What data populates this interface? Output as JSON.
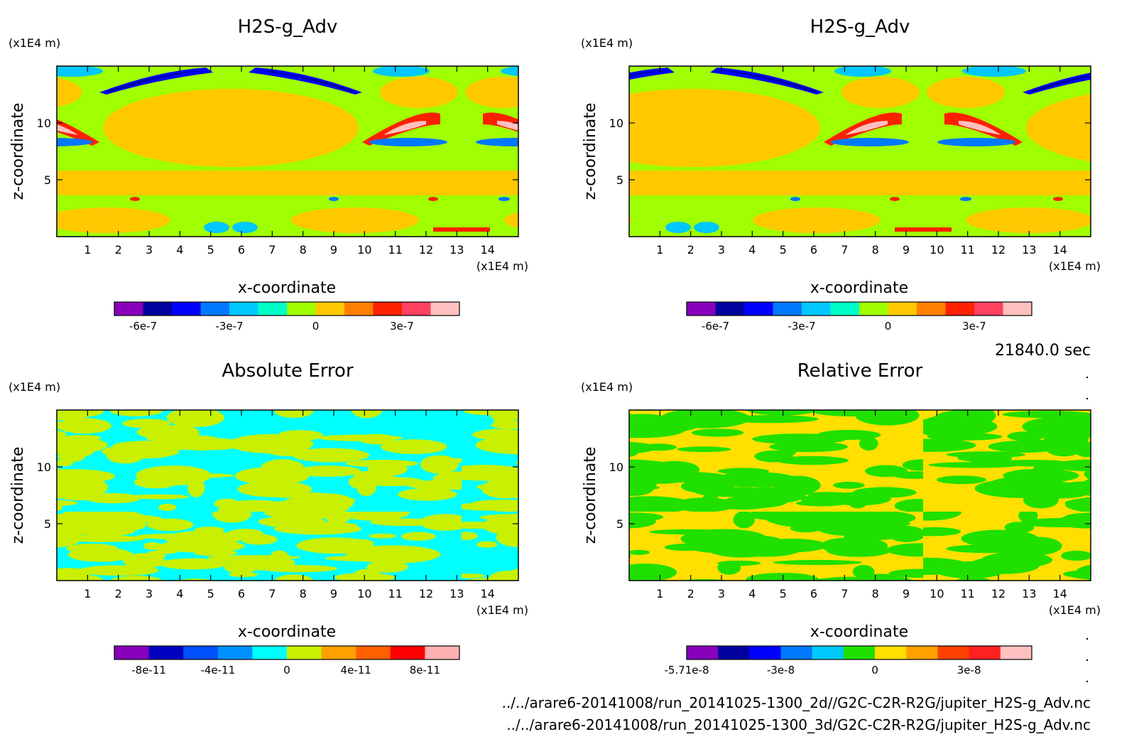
{
  "footer": {
    "time_label": "21840.0 sec",
    "file_2d": "../../arare6-20141008/run_20141025-1300_2d//G2C-C2R-R2G/jupiter_H2S-g_Adv.nc",
    "file_3d": "../../arare6-20141008/run_20141025-1300_3d/G2C-C2R-R2G/jupiter_H2S-g_Adv.nc"
  },
  "chart_data": [
    {
      "type": "heatmap",
      "title": "H2S-g_Adv",
      "xlabel": "x-coordinate",
      "ylabel": "z-coordinate",
      "x_unit": "(x1E4 m)",
      "y_unit": "(x1E4 m)",
      "xlim": [
        0,
        15
      ],
      "ylim": [
        0,
        15
      ],
      "x_ticks": [
        1,
        2,
        3,
        4,
        5,
        6,
        7,
        8,
        9,
        10,
        11,
        12,
        13,
        14
      ],
      "y_ticks": [
        5,
        10
      ],
      "colorbar": {
        "colors": [
          "#8800bb",
          "#0000a0",
          "#0000ff",
          "#0078ff",
          "#00c8ff",
          "#00ffc8",
          "#a0ff00",
          "#ffc800",
          "#ff8000",
          "#ff2000",
          "#ff4060",
          "#ffc0c0"
        ],
        "tick_labels": [
          "-6e-7",
          "-3e-7",
          "0",
          "3e-7"
        ],
        "tick_index": [
          1,
          4,
          7,
          10
        ]
      }
    },
    {
      "type": "heatmap",
      "title": "H2S-g_Adv",
      "xlabel": "x-coordinate",
      "ylabel": "z-coordinate",
      "x_unit": "(x1E4 m)",
      "y_unit": "(x1E4 m)",
      "xlim": [
        0,
        15
      ],
      "ylim": [
        0,
        15
      ],
      "x_ticks": [
        1,
        2,
        3,
        4,
        5,
        6,
        7,
        8,
        9,
        10,
        11,
        12,
        13,
        14
      ],
      "y_ticks": [
        5,
        10
      ],
      "colorbar": {
        "colors": [
          "#8800bb",
          "#0000a0",
          "#0000ff",
          "#0078ff",
          "#00c8ff",
          "#00ffc8",
          "#a0ff00",
          "#ffc800",
          "#ff8000",
          "#ff2000",
          "#ff4060",
          "#ffc0c0"
        ],
        "tick_labels": [
          "-6e-7",
          "-3e-7",
          "0",
          "3e-7"
        ],
        "tick_index": [
          1,
          4,
          7,
          10
        ]
      }
    },
    {
      "type": "heatmap",
      "title": "Absolute Error",
      "xlabel": "x-coordinate",
      "ylabel": "z-coordinate",
      "x_unit": "(x1E4 m)",
      "y_unit": "(x1E4 m)",
      "xlim": [
        0,
        15
      ],
      "ylim": [
        0,
        15
      ],
      "x_ticks": [
        1,
        2,
        3,
        4,
        5,
        6,
        7,
        8,
        9,
        10,
        11,
        12,
        13,
        14
      ],
      "y_ticks": [
        5,
        10
      ],
      "colorbar": {
        "colors": [
          "#8800bb",
          "#0000c0",
          "#0050ff",
          "#0090ff",
          "#00ffff",
          "#c8f000",
          "#ffa000",
          "#ff6000",
          "#ff0000",
          "#ffb0b0"
        ],
        "tick_labels": [
          "-8e-11",
          "-4e-11",
          "0",
          "4e-11",
          "8e-11"
        ],
        "tick_index": [
          1,
          3,
          5,
          7,
          9
        ]
      }
    },
    {
      "type": "heatmap",
      "title": "Relative Error",
      "xlabel": "x-coordinate",
      "ylabel": "z-coordinate",
      "x_unit": "(x1E4 m)",
      "y_unit": "(x1E4 m)",
      "xlim": [
        0,
        15
      ],
      "ylim": [
        0,
        15
      ],
      "x_ticks": [
        1,
        2,
        3,
        4,
        5,
        6,
        7,
        8,
        9,
        10,
        11,
        12,
        13,
        14
      ],
      "y_ticks": [
        5,
        10
      ],
      "colorbar": {
        "colors": [
          "#8800bb",
          "#0000a0",
          "#0000ff",
          "#0078ff",
          "#00c8ff",
          "#20e000",
          "#ffe000",
          "#ffa000",
          "#ff4000",
          "#ff2020",
          "#ffc0c0"
        ],
        "tick_labels": [
          "-5.71e-8",
          "-3e-8",
          "0",
          "3e-8"
        ],
        "tick_index": [
          0,
          3,
          6,
          9
        ]
      }
    }
  ]
}
